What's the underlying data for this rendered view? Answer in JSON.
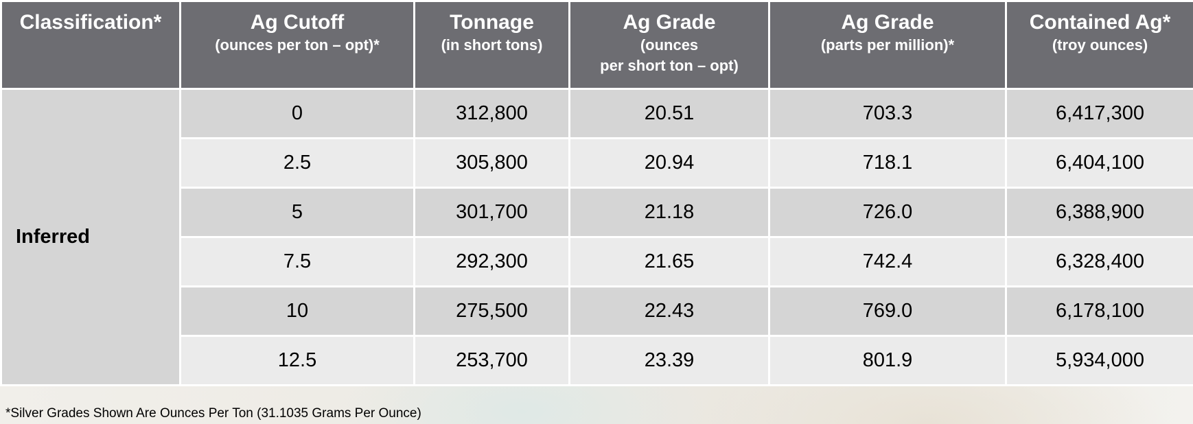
{
  "table": {
    "headers": [
      {
        "main": "Classification*",
        "sub": ""
      },
      {
        "main": "Ag Cutoff",
        "sub": "(ounces per ton – opt)*"
      },
      {
        "main": "Tonnage",
        "sub": "(in short tons)"
      },
      {
        "main": "Ag Grade",
        "sub": "(ounces\nper short ton – opt)"
      },
      {
        "main": "Ag Grade",
        "sub": "(parts per million)*"
      },
      {
        "main": "Contained Ag*",
        "sub": "(troy ounces)"
      }
    ],
    "classification": "Inferred",
    "rows": [
      {
        "cutoff": "0",
        "tonnage": "312,800",
        "grade_opt": "20.51",
        "grade_ppm": "703.3",
        "contained": "6,417,300"
      },
      {
        "cutoff": "2.5",
        "tonnage": "305,800",
        "grade_opt": "20.94",
        "grade_ppm": "718.1",
        "contained": "6,404,100"
      },
      {
        "cutoff": "5",
        "tonnage": "301,700",
        "grade_opt": "21.18",
        "grade_ppm": "726.0",
        "contained": "6,388,900"
      },
      {
        "cutoff": "7.5",
        "tonnage": "292,300",
        "grade_opt": "21.65",
        "grade_ppm": "742.4",
        "contained": "6,328,400"
      },
      {
        "cutoff": "10",
        "tonnage": "275,500",
        "grade_opt": "22.43",
        "grade_ppm": "769.0",
        "contained": "6,178,100"
      },
      {
        "cutoff": "12.5",
        "tonnage": "253,700",
        "grade_opt": "23.39",
        "grade_ppm": "801.9",
        "contained": "5,934,000"
      }
    ]
  },
  "footnote": "*Silver Grades Shown Are Ounces Per Ton (31.1035 Grams Per Ounce)",
  "colors": {
    "header_bg": "#6d6d72",
    "row_dark": "#d5d5d5",
    "row_light": "#ebebeb"
  }
}
